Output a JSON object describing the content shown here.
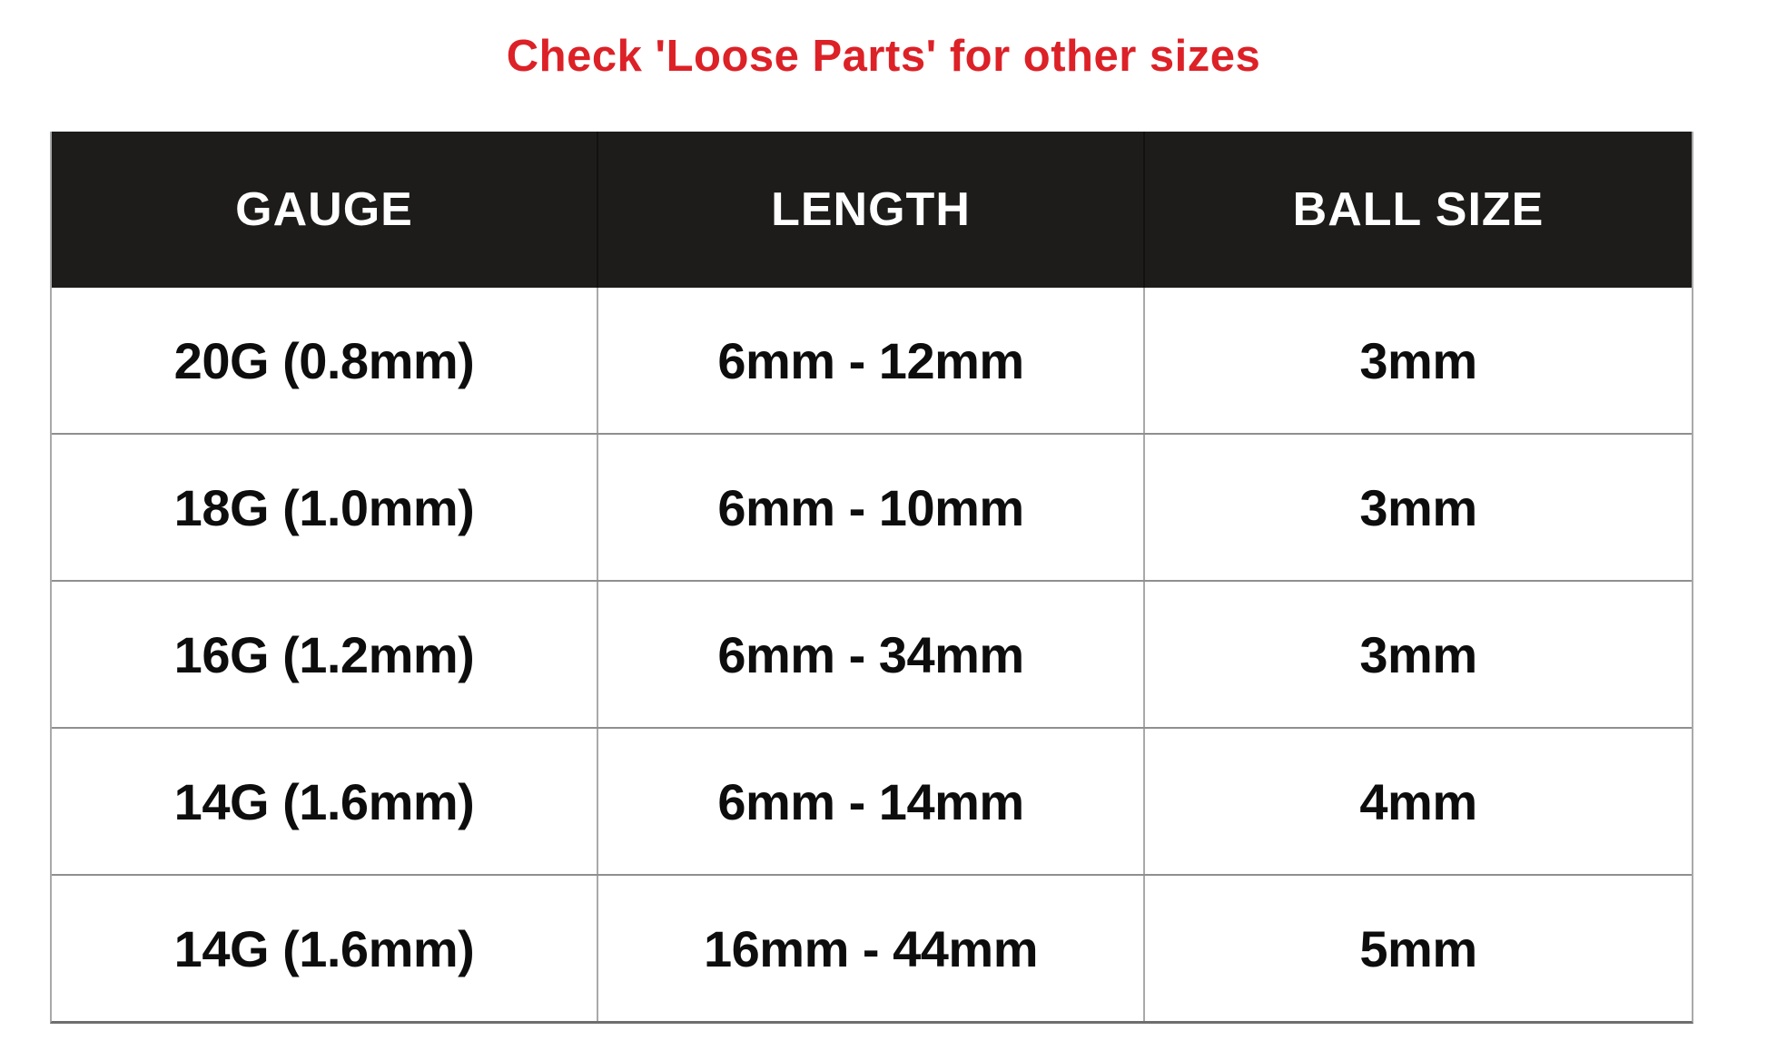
{
  "title": {
    "text": "Check 'Loose Parts' for other sizes"
  },
  "chart_data": {
    "type": "table",
    "title": "Check 'Loose Parts' for other sizes",
    "columns": [
      "GAUGE",
      "LENGTH",
      "BALL SIZE"
    ],
    "rows": [
      [
        "20G (0.8mm)",
        "6mm - 12mm",
        "3mm"
      ],
      [
        "18G (1.0mm)",
        "6mm - 10mm",
        "3mm"
      ],
      [
        "16G (1.2mm)",
        "6mm - 34mm",
        "3mm"
      ],
      [
        "14G (1.6mm)",
        "6mm - 14mm",
        "4mm"
      ],
      [
        "14G (1.6mm)",
        "16mm - 44mm",
        "5mm"
      ]
    ]
  },
  "colors": {
    "title_red": "#dc2127",
    "header_background": "#1d1c1a",
    "header_text": "#ffffff",
    "body_text": "#0d0d0d",
    "grid_line_vertical": "#a9a9a9",
    "grid_line_horizontal": "#8f8f8f",
    "table_bottom_border": "#6e6e6e",
    "page_background": "#ffffff"
  }
}
